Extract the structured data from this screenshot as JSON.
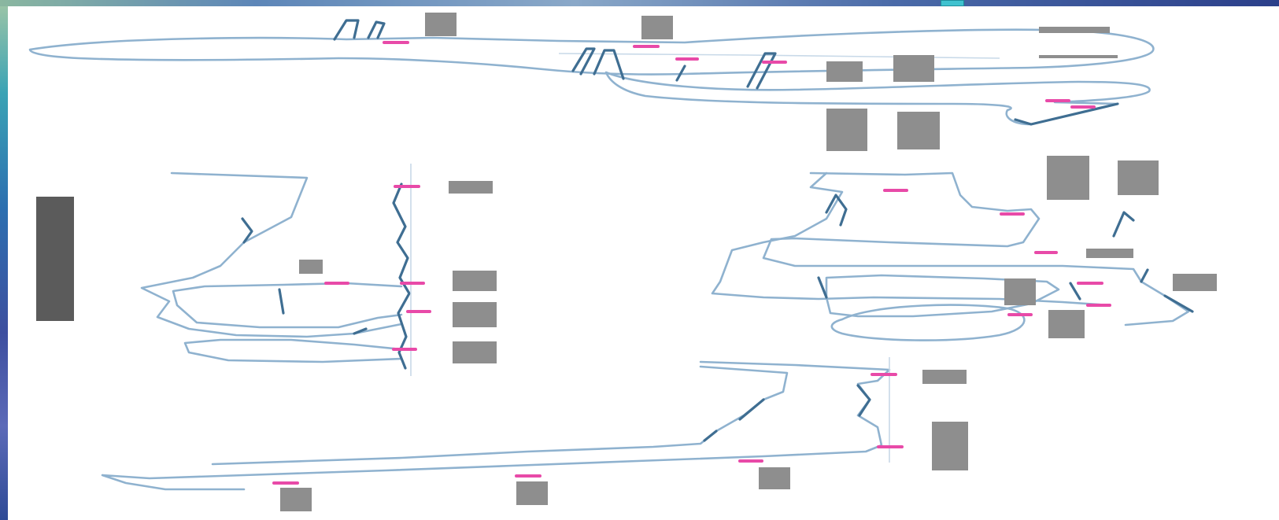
{
  "slide": {
    "accent_colors": {
      "trace": "#8fb2cf",
      "trace_dark": "#3f6e92",
      "marker": "#e84aa8",
      "frame_highlight": "#3fc2cf"
    },
    "diagrams": [
      {
        "id": "top-trace"
      },
      {
        "id": "left-trace"
      },
      {
        "id": "right-trace"
      },
      {
        "id": "bottom-trace"
      }
    ]
  }
}
